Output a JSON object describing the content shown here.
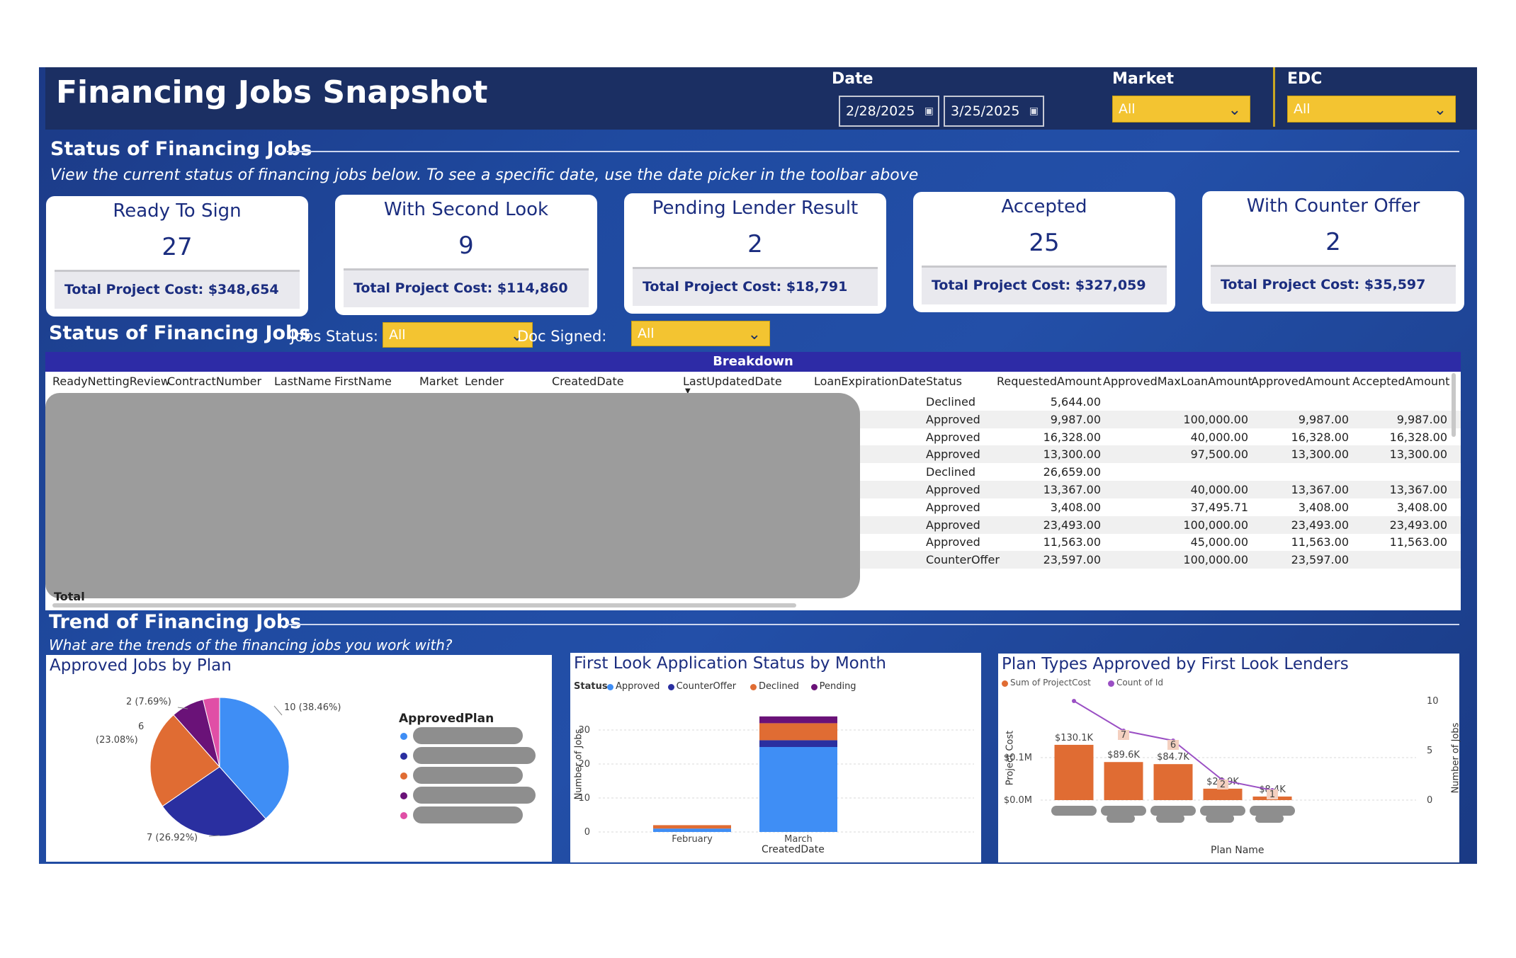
{
  "header": {
    "title": "Financing Jobs Snapshot",
    "date_label": "Date",
    "date_start": "2/28/2025",
    "date_end": "3/25/2025",
    "market_label": "Market",
    "market_value": "All",
    "edc_label": "EDC",
    "edc_value": "All"
  },
  "status_section": {
    "heading": "Status of Financing Jobs",
    "subtitle": "View the current status of financing jobs below. To see a specific date, use the date picker in the toolbar above"
  },
  "cards": [
    {
      "title": "Ready To Sign",
      "count": "27",
      "cost": "Total Project Cost: $348,654"
    },
    {
      "title": "With Second Look",
      "count": "9",
      "cost": "Total Project Cost: $114,860"
    },
    {
      "title": "Pending Lender Result",
      "count": "2",
      "cost": "Total Project Cost: $18,791"
    },
    {
      "title": "Accepted",
      "count": "25",
      "cost": "Total Project Cost: $327,059"
    },
    {
      "title": "With Counter Offer",
      "count": "2",
      "cost": "Total Project Cost: $35,597"
    }
  ],
  "table_section": {
    "heading": "Status of Financing Jobs",
    "jobs_status_label": "Jobs Status:",
    "jobs_status_value": "All",
    "doc_signed_label": "Doc Signed:",
    "doc_signed_value": "All",
    "breakdown_label": "Breakdown",
    "columns": [
      "ReadyNettingReview",
      "ContractNumber",
      "LastName",
      "FirstName",
      "Market",
      "Lender",
      "CreatedDate",
      "LastUpdatedDate",
      "LoanExpirationDate",
      "Status",
      "RequestedAmount",
      "ApprovedMaxLoanAmount",
      "ApprovedAmount",
      "AcceptedAmount"
    ],
    "rows": [
      {
        "status": "Declined",
        "requested": "5,644.00",
        "max_loan": "",
        "approved": "",
        "accepted": ""
      },
      {
        "status": "Approved",
        "requested": "9,987.00",
        "max_loan": "100,000.00",
        "approved": "9,987.00",
        "accepted": "9,987.00"
      },
      {
        "status": "Approved",
        "requested": "16,328.00",
        "max_loan": "40,000.00",
        "approved": "16,328.00",
        "accepted": "16,328.00"
      },
      {
        "status": "Approved",
        "requested": "13,300.00",
        "max_loan": "97,500.00",
        "approved": "13,300.00",
        "accepted": "13,300.00"
      },
      {
        "status": "Declined",
        "requested": "26,659.00",
        "max_loan": "",
        "approved": "",
        "accepted": ""
      },
      {
        "status": "Approved",
        "requested": "13,367.00",
        "max_loan": "40,000.00",
        "approved": "13,367.00",
        "accepted": "13,367.00"
      },
      {
        "status": "Approved",
        "requested": "3,408.00",
        "max_loan": "37,495.71",
        "approved": "3,408.00",
        "accepted": "3,408.00"
      },
      {
        "status": "Approved",
        "requested": "23,493.00",
        "max_loan": "100,000.00",
        "approved": "23,493.00",
        "accepted": "23,493.00"
      },
      {
        "status": "Approved",
        "requested": "11,563.00",
        "max_loan": "45,000.00",
        "approved": "11,563.00",
        "accepted": "11,563.00"
      },
      {
        "status": "CounterOffer",
        "requested": "23,597.00",
        "max_loan": "100,000.00",
        "approved": "23,597.00",
        "accepted": ""
      }
    ],
    "total_label": "Total"
  },
  "trend_section": {
    "heading": "Trend of Financing Jobs",
    "subtitle": "What are the trends of the financing jobs you work with?"
  },
  "pie_panel": {
    "title": "Approved Jobs by Plan",
    "legend_title": "ApprovedPlan",
    "legend_colors": [
      "#3f8ef5",
      "#2a2fa0",
      "#e06c33",
      "#6a1278",
      "#e04fa6"
    ],
    "labels": [
      "10 (38.46%)",
      "7 (26.92%)",
      "6",
      "(23.08%)",
      "2 (7.69%)"
    ]
  },
  "bar_panel": {
    "title": "First Look Application Status by Month",
    "legend_title": "Status",
    "legend": [
      {
        "name": "Approved",
        "color": "#3f8ef5"
      },
      {
        "name": "CounterOffer",
        "color": "#2a2fa0"
      },
      {
        "name": "Declined",
        "color": "#e06c33"
      },
      {
        "name": "Pending",
        "color": "#6a1278"
      }
    ],
    "xlabel": "CreatedDate",
    "ylabel": "Number of Jobs"
  },
  "combo_panel": {
    "title": "Plan Types Approved by First Look Lenders",
    "legend": [
      {
        "name": "Sum of ProjectCost",
        "color": "#e06c33"
      },
      {
        "name": "Count of Id",
        "color": "#9a4fc4"
      }
    ],
    "xlabel": "Plan Name",
    "ylabel_left": "Project Cost",
    "ylabel_right": "Number of Jobs"
  },
  "chart_data": [
    {
      "type": "pie",
      "title": "Approved Jobs by Plan",
      "legend_title": "ApprovedPlan",
      "values": [
        10,
        7,
        6,
        2,
        1
      ],
      "percentages": [
        38.46,
        26.92,
        23.08,
        7.69,
        3.85
      ],
      "colors": [
        "#3f8ef5",
        "#2a2fa0",
        "#e06c33",
        "#6a1278",
        "#e04fa6"
      ]
    },
    {
      "type": "bar",
      "title": "First Look Application Status by Month",
      "xlabel": "CreatedDate",
      "ylabel": "Number of Jobs",
      "categories": [
        "February",
        "March"
      ],
      "yticks": [
        0,
        10,
        20,
        30
      ],
      "ylim": [
        0,
        35
      ],
      "stacked": true,
      "series": [
        {
          "name": "Approved",
          "values": [
            1,
            25
          ]
        },
        {
          "name": "CounterOffer",
          "values": [
            0,
            2
          ]
        },
        {
          "name": "Declined",
          "values": [
            1,
            5
          ]
        },
        {
          "name": "Pending",
          "values": [
            0,
            2
          ]
        }
      ]
    },
    {
      "type": "bar",
      "title": "Plan Types Approved by First Look Lenders",
      "xlabel": "Plan Name",
      "ylabel": "Project Cost",
      "y2label": "Number of Jobs",
      "yticks": [
        "$0.0M",
        "$0.1M"
      ],
      "y2ticks": [
        0,
        5,
        10
      ],
      "series": [
        {
          "name": "Sum of ProjectCost",
          "values": [
            130100,
            89600,
            84700,
            26900,
            8400
          ],
          "labels": [
            "$130.1K",
            "$89.6K",
            "$84.7K",
            "$26.9K",
            "$8.4K"
          ]
        },
        {
          "name": "Count of Id",
          "values": [
            10,
            7,
            6,
            2,
            1
          ]
        }
      ]
    }
  ]
}
